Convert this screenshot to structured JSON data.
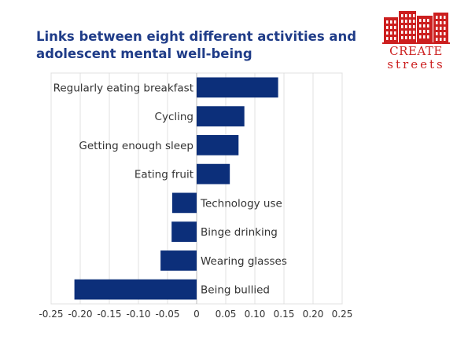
{
  "header": {
    "title_line1": "Links between eight different activities and",
    "title_line2": "adolescent mental well-being"
  },
  "logo": {
    "word1": "CREATE",
    "word2": "streets",
    "color": "#cc1f1f"
  },
  "chart_data": {
    "type": "bar",
    "orientation": "horizontal",
    "title": "Links between eight different activities and adolescent mental well-being",
    "categories": [
      "Regularly eating breakfast",
      "Cycling",
      "Getting enough sleep",
      "Eating fruit",
      "Technology use",
      "Binge drinking",
      "Wearing glasses",
      "Being bullied"
    ],
    "values": [
      0.14,
      0.082,
      0.072,
      0.057,
      -0.042,
      -0.043,
      -0.062,
      -0.21
    ],
    "xlim": [
      -0.25,
      0.25
    ],
    "xticks": [
      -0.25,
      -0.2,
      -0.15,
      -0.1,
      -0.05,
      0,
      0.05,
      0.1,
      0.15,
      0.2,
      0.25
    ],
    "xtick_labels": [
      "-0.25",
      "-0.20",
      "-0.15",
      "-0.10",
      "-0.05",
      "0",
      "0.05",
      "0.10",
      "0.15",
      "0.20",
      "0.25"
    ],
    "xlabel": "",
    "ylabel": "",
    "bar_color": "#0c2f7a",
    "gridlines": "vertical",
    "legend": "none"
  }
}
